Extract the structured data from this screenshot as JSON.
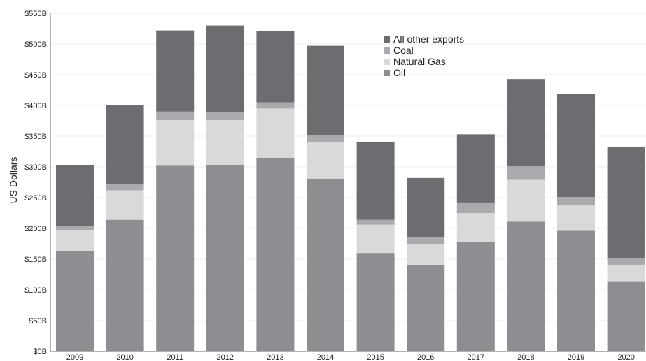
{
  "chart_data": {
    "type": "bar",
    "stacked": true,
    "ylabel": "US Dollars",
    "ylim": [
      0,
      550
    ],
    "ytick_values": [
      0,
      50,
      100,
      150,
      200,
      250,
      300,
      350,
      400,
      450,
      500,
      550
    ],
    "ytick_labels": [
      "$0B",
      "$50B",
      "$100B",
      "$150B",
      "$200B",
      "$250B",
      "$300B",
      "$350B",
      "$400B",
      "$450B",
      "$500B",
      "$550B"
    ],
    "categories": [
      "2009",
      "2010",
      "2011",
      "2012",
      "2013",
      "2014",
      "2015",
      "2016",
      "2017",
      "2018",
      "2019",
      "2020"
    ],
    "series": [
      {
        "name": "Oil",
        "color": "#8d8e92",
        "values": [
          163,
          214,
          302,
          303,
          315,
          281,
          159,
          141,
          178,
          211,
          196,
          113
        ]
      },
      {
        "name": "Natural Gas",
        "color": "#d8d9db",
        "values": [
          34,
          48,
          74,
          73,
          80,
          59,
          47,
          34,
          47,
          68,
          42,
          28
        ]
      },
      {
        "name": "Coal",
        "color": "#a9aaad",
        "values": [
          7,
          10,
          14,
          13,
          10,
          12,
          8,
          10,
          16,
          22,
          13,
          11
        ]
      },
      {
        "name": "All other exports",
        "color": "#6c6d71",
        "values": [
          99,
          128,
          132,
          141,
          116,
          145,
          127,
          97,
          112,
          142,
          168,
          181
        ]
      }
    ],
    "legend_order": [
      "All other exports",
      "Coal",
      "Natural Gas",
      "Oil"
    ],
    "legend_position": "top-center",
    "grid": true
  }
}
